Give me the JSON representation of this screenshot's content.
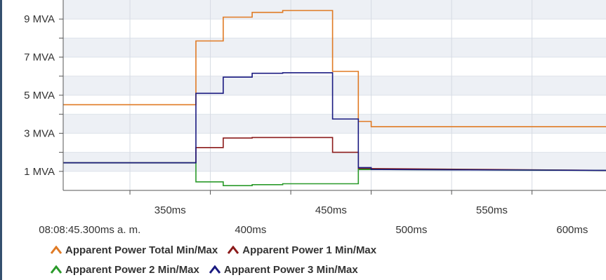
{
  "chart_data": {
    "type": "line",
    "step": true,
    "y_unit": "MVA",
    "ylim": [
      0,
      10
    ],
    "y_tick_values": [
      1,
      3,
      5,
      7,
      9
    ],
    "y_tick_labels": [
      "1 MVA",
      "3 MVA",
      "5 MVA",
      "7 MVA",
      "9 MVA"
    ],
    "xlim": [
      283.5,
      621
    ],
    "x_tick_values_top": [
      350,
      450,
      550
    ],
    "x_tick_labels_top": [
      "350ms",
      "450ms",
      "550ms"
    ],
    "x_tick_values_bottom": [
      300,
      400,
      500,
      600
    ],
    "x_tick_labels_bottom": [
      "08:08:45.300ms a. m.",
      "400ms",
      "500ms",
      "600ms"
    ],
    "grid": true,
    "legend_position": "bottom-left",
    "series": [
      {
        "name": "Apparent Power Total Min/Max",
        "color": "#e07a24",
        "points": [
          [
            283.5,
            4.5
          ],
          [
            366,
            4.5
          ],
          [
            366,
            7.85
          ],
          [
            383,
            7.85
          ],
          [
            383,
            9.1
          ],
          [
            401,
            9.1
          ],
          [
            401,
            9.35
          ],
          [
            420,
            9.35
          ],
          [
            420,
            9.45
          ],
          [
            451,
            9.45
          ],
          [
            451,
            6.25
          ],
          [
            467,
            6.25
          ],
          [
            467,
            3.62
          ],
          [
            475,
            3.62
          ],
          [
            475,
            3.35
          ],
          [
            621,
            3.35
          ]
        ]
      },
      {
        "name": "Apparent Power 1 Min/Max",
        "color": "#8b1a1a",
        "points": [
          [
            283.5,
            1.45
          ],
          [
            366,
            1.45
          ],
          [
            366,
            2.25
          ],
          [
            383,
            2.25
          ],
          [
            383,
            2.75
          ],
          [
            401,
            2.75
          ],
          [
            401,
            2.78
          ],
          [
            451,
            2.78
          ],
          [
            451,
            2.0
          ],
          [
            467,
            2.0
          ],
          [
            467,
            1.15
          ],
          [
            621,
            1.05
          ]
        ]
      },
      {
        "name": "Apparent Power 2 Min/Max",
        "color": "#2a9a2a",
        "points": [
          [
            283.5,
            1.45
          ],
          [
            366,
            1.45
          ],
          [
            366,
            0.45
          ],
          [
            383,
            0.45
          ],
          [
            383,
            0.25
          ],
          [
            401,
            0.25
          ],
          [
            401,
            0.3
          ],
          [
            420,
            0.3
          ],
          [
            420,
            0.35
          ],
          [
            451,
            0.35
          ],
          [
            451,
            0.35
          ],
          [
            467,
            0.35
          ],
          [
            467,
            1.1
          ],
          [
            621,
            1.05
          ]
        ]
      },
      {
        "name": "Apparent Power 3 Min/Max",
        "color": "#1a1a80",
        "points": [
          [
            283.5,
            1.45
          ],
          [
            366,
            1.45
          ],
          [
            366,
            5.1
          ],
          [
            383,
            5.1
          ],
          [
            383,
            5.95
          ],
          [
            401,
            5.95
          ],
          [
            401,
            6.15
          ],
          [
            420,
            6.15
          ],
          [
            420,
            6.18
          ],
          [
            451,
            6.18
          ],
          [
            451,
            3.75
          ],
          [
            467,
            3.75
          ],
          [
            467,
            1.2
          ],
          [
            475,
            1.2
          ],
          [
            475,
            1.1
          ],
          [
            621,
            1.05
          ]
        ]
      }
    ]
  }
}
